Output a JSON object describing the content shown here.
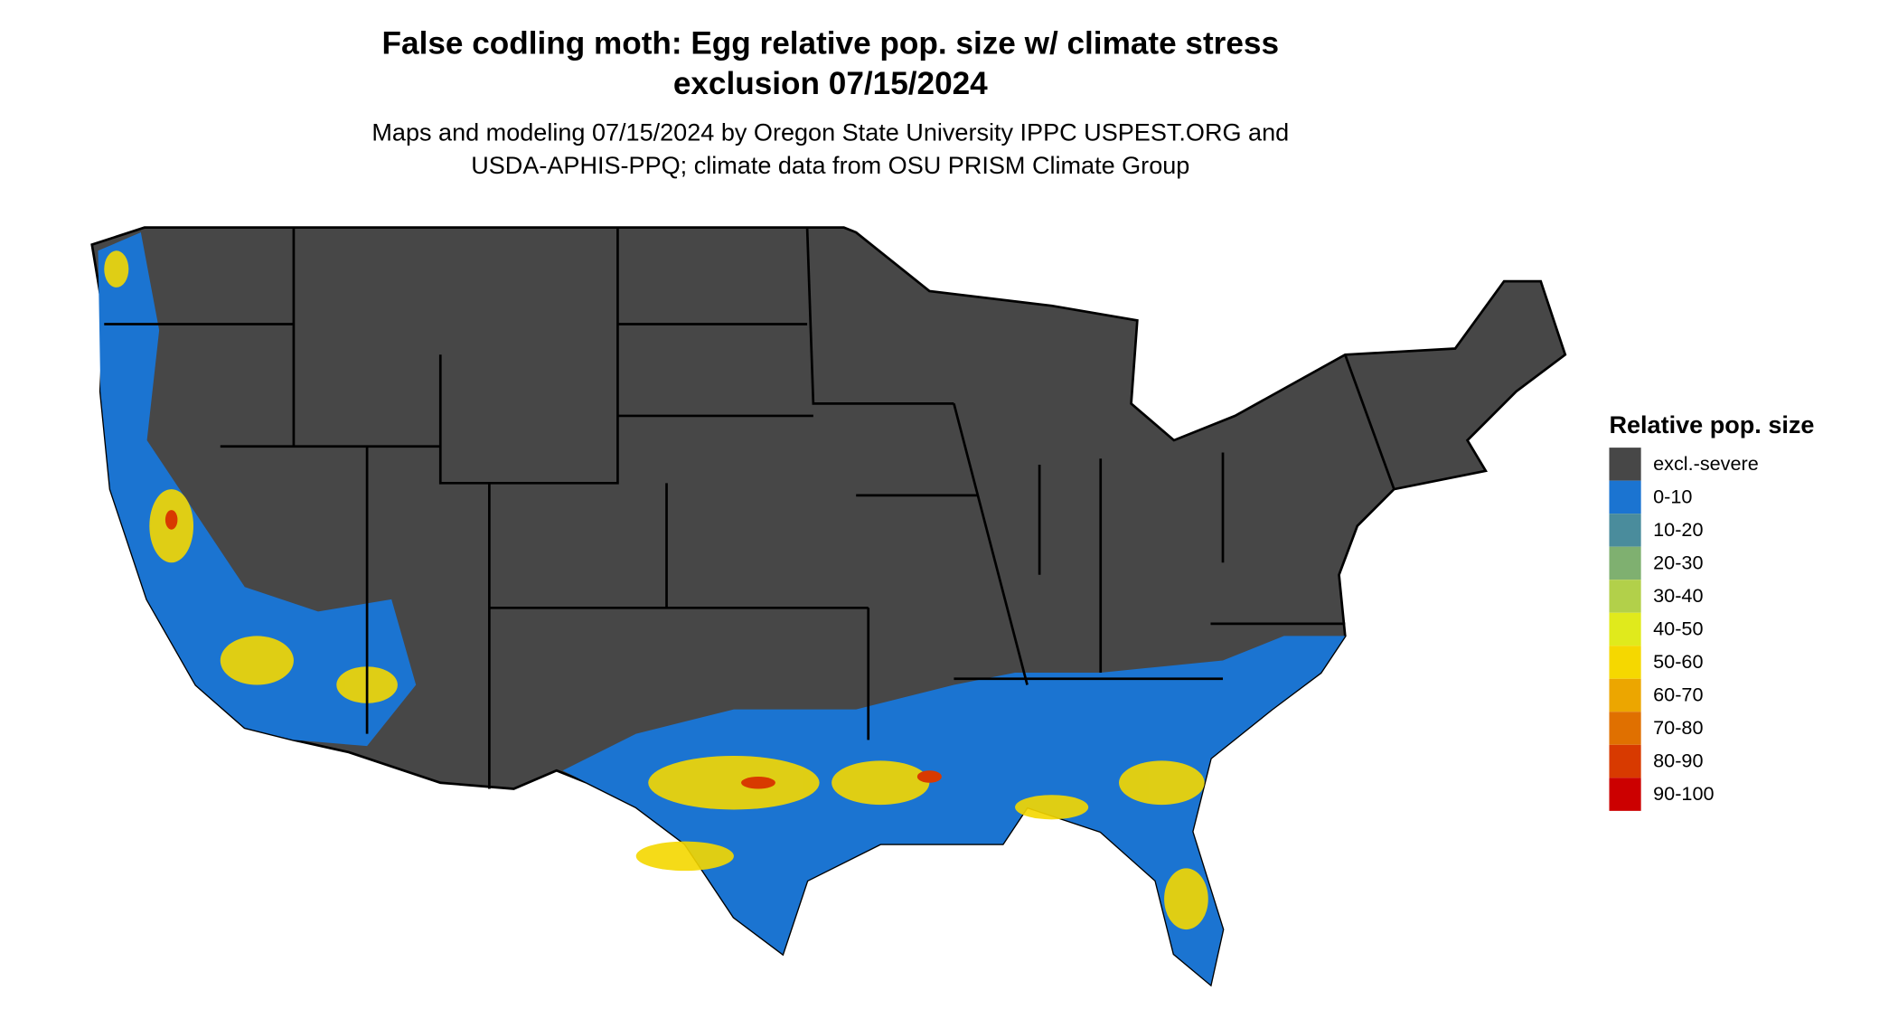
{
  "title": [
    "False codling moth: Egg relative pop. size w/ climate stress",
    "exclusion 07/15/2024"
  ],
  "subtitle": [
    "Maps and modeling 07/15/2024 by Oregon State University IPPC USPEST.ORG and",
    "USDA-APHIS-PPQ; climate data from OSU PRISM Climate Group"
  ],
  "legend": {
    "title": "Relative pop. size",
    "items": [
      {
        "label": "excl.-severe",
        "color": "#474747"
      },
      {
        "label": "0-10",
        "color": "#1b74d1"
      },
      {
        "label": "10-20",
        "color": "#4a8c9c"
      },
      {
        "label": "20-30",
        "color": "#7fb070"
      },
      {
        "label": "30-40",
        "color": "#b2d04a"
      },
      {
        "label": "40-50",
        "color": "#e0ea1c"
      },
      {
        "label": "50-60",
        "color": "#f5d800"
      },
      {
        "label": "60-70",
        "color": "#eca600"
      },
      {
        "label": "70-80",
        "color": "#e07000"
      },
      {
        "label": "80-90",
        "color": "#d83a00"
      },
      {
        "label": "90-100",
        "color": "#cc0000"
      }
    ]
  }
}
